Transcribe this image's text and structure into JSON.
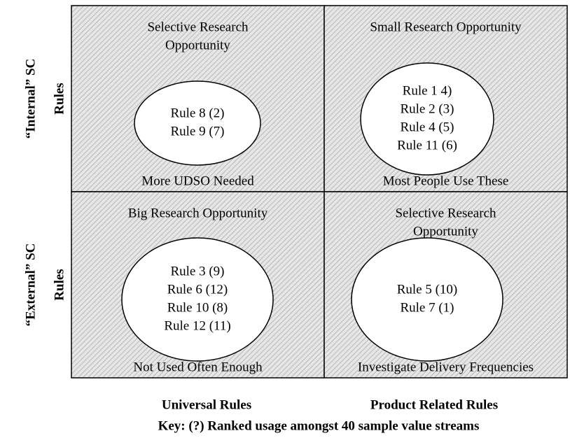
{
  "quadrants": [
    {
      "title_lines": [
        "Selective Research",
        "Opportunity"
      ],
      "rules": [
        "Rule 8 (2)",
        "Rule 9 (7)"
      ],
      "footer": "More UDSO Needed"
    },
    {
      "title_lines": [
        "Small Research Opportunity"
      ],
      "rules": [
        "Rule 1 4)",
        "Rule 2 (3)",
        "Rule 4 (5)",
        "Rule 11 (6)"
      ],
      "footer": "Most People Use These"
    },
    {
      "title_lines": [
        "Big Research Opportunity"
      ],
      "rules": [
        "Rule 3 (9)",
        "Rule 6 (12)",
        "Rule 10 (8)",
        "Rule 12 (11)"
      ],
      "footer": "Not Used Often Enough"
    },
    {
      "title_lines": [
        "Selective Research",
        "Opportunity"
      ],
      "rules": [
        "Rule 5 (10)",
        "Rule 7 (1)"
      ],
      "footer": "Investigate Delivery Frequencies"
    }
  ],
  "rows": [
    {
      "label": "“Internal” SC",
      "sub": "Rules"
    },
    {
      "label": "“External” SC",
      "sub": "Rules"
    }
  ],
  "columns": [
    "Universal Rules",
    "Product Related Rules"
  ],
  "key": "Key: (?)  Ranked usage amongst 40 sample value streams"
}
